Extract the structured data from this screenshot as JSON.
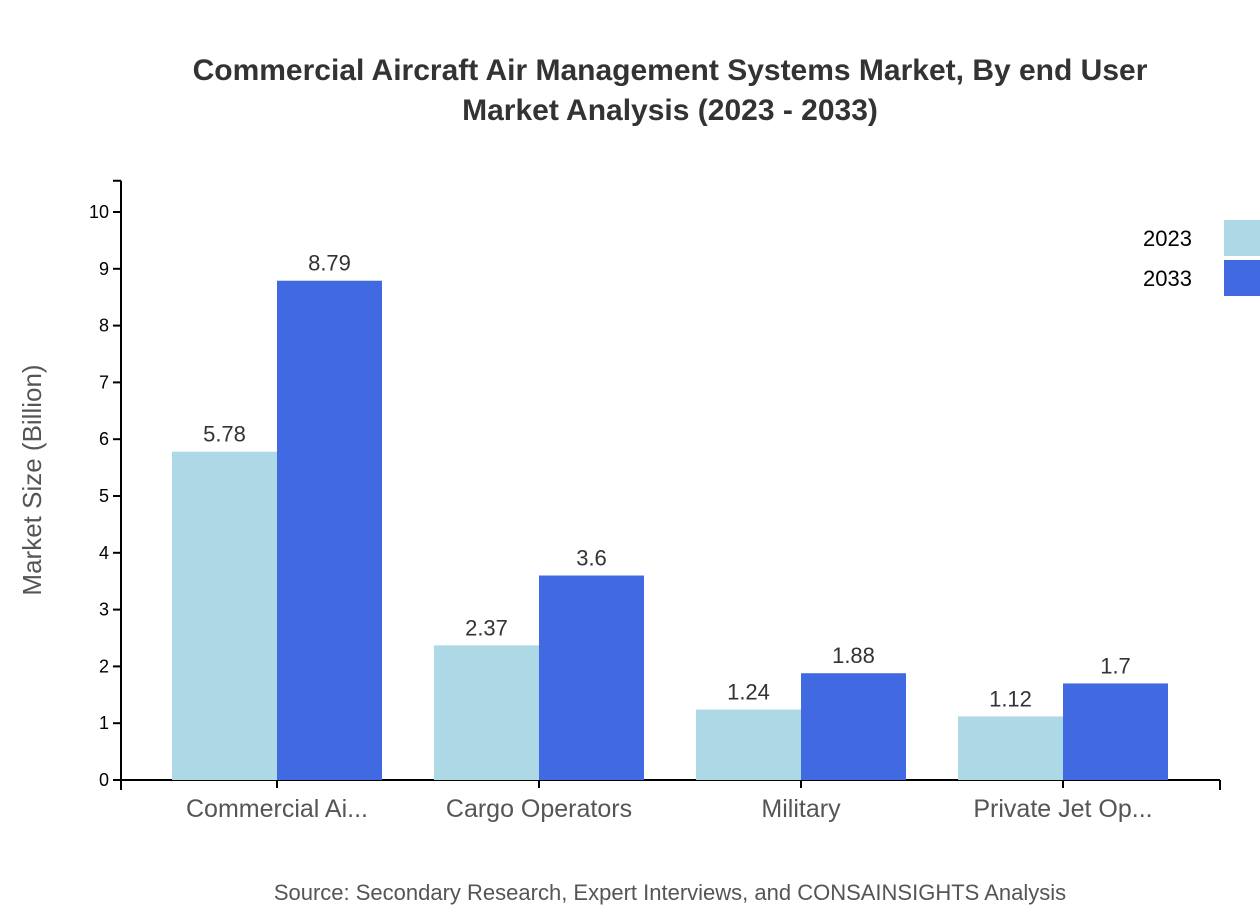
{
  "chart_data": {
    "type": "bar",
    "title": [
      "Commercial Aircraft Air Management Systems Market, By end User",
      "Market Analysis (2023 - 2033)"
    ],
    "xlabel": "",
    "ylabel": "Market Size (Billion)",
    "ylim": [
      0,
      10.55
    ],
    "yticks": [
      0,
      1,
      2,
      3,
      4,
      5,
      6,
      7,
      8,
      9,
      10
    ],
    "categories": [
      "Commercial Ai...",
      "Cargo Operators",
      "Military",
      "Private Jet Op..."
    ],
    "series": [
      {
        "name": "2023",
        "color": "#ADD8E6",
        "values": [
          5.78,
          2.37,
          1.24,
          1.12
        ]
      },
      {
        "name": "2033",
        "color": "#4169E1",
        "values": [
          8.79,
          3.6,
          1.88,
          1.7
        ]
      }
    ],
    "legend_position": "top-right",
    "grid": false,
    "source": "Source: Secondary Research, Expert Interviews, and CONSAINSIGHTS Analysis"
  }
}
